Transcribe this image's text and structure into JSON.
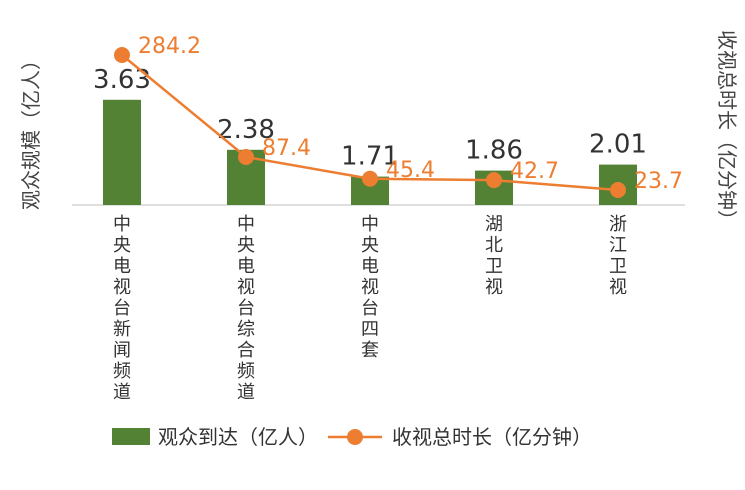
{
  "chart_data": {
    "type": "bar+line",
    "categories": [
      "中央电视台新闻频道",
      "中央电视台综合频道",
      "中央电视台四套",
      "湖北卫视",
      "浙江卫视"
    ],
    "series": [
      {
        "name": "观众到达（亿人）",
        "type": "bar",
        "values": [
          3.63,
          2.38,
          1.71,
          1.86,
          2.01
        ],
        "axis": "left",
        "color": "#548235"
      },
      {
        "name": "收视总时长（亿分钟）",
        "type": "line",
        "values": [
          284.2,
          87.4,
          45.4,
          42.7,
          23.7
        ],
        "axis": "right",
        "color": "#ED7D31"
      }
    ],
    "value_labels": {
      "bar": [
        "3.63",
        "2.38",
        "1.71",
        "1.86",
        "2.01"
      ],
      "line": [
        "284.2",
        "87.4",
        "45.4",
        "42.7",
        "23.7"
      ]
    },
    "ylabel_left": "观众规模（亿人）",
    "ylabel_right": "收视总时长（亿分钟）",
    "legend_position": "bottom",
    "grid": false
  }
}
